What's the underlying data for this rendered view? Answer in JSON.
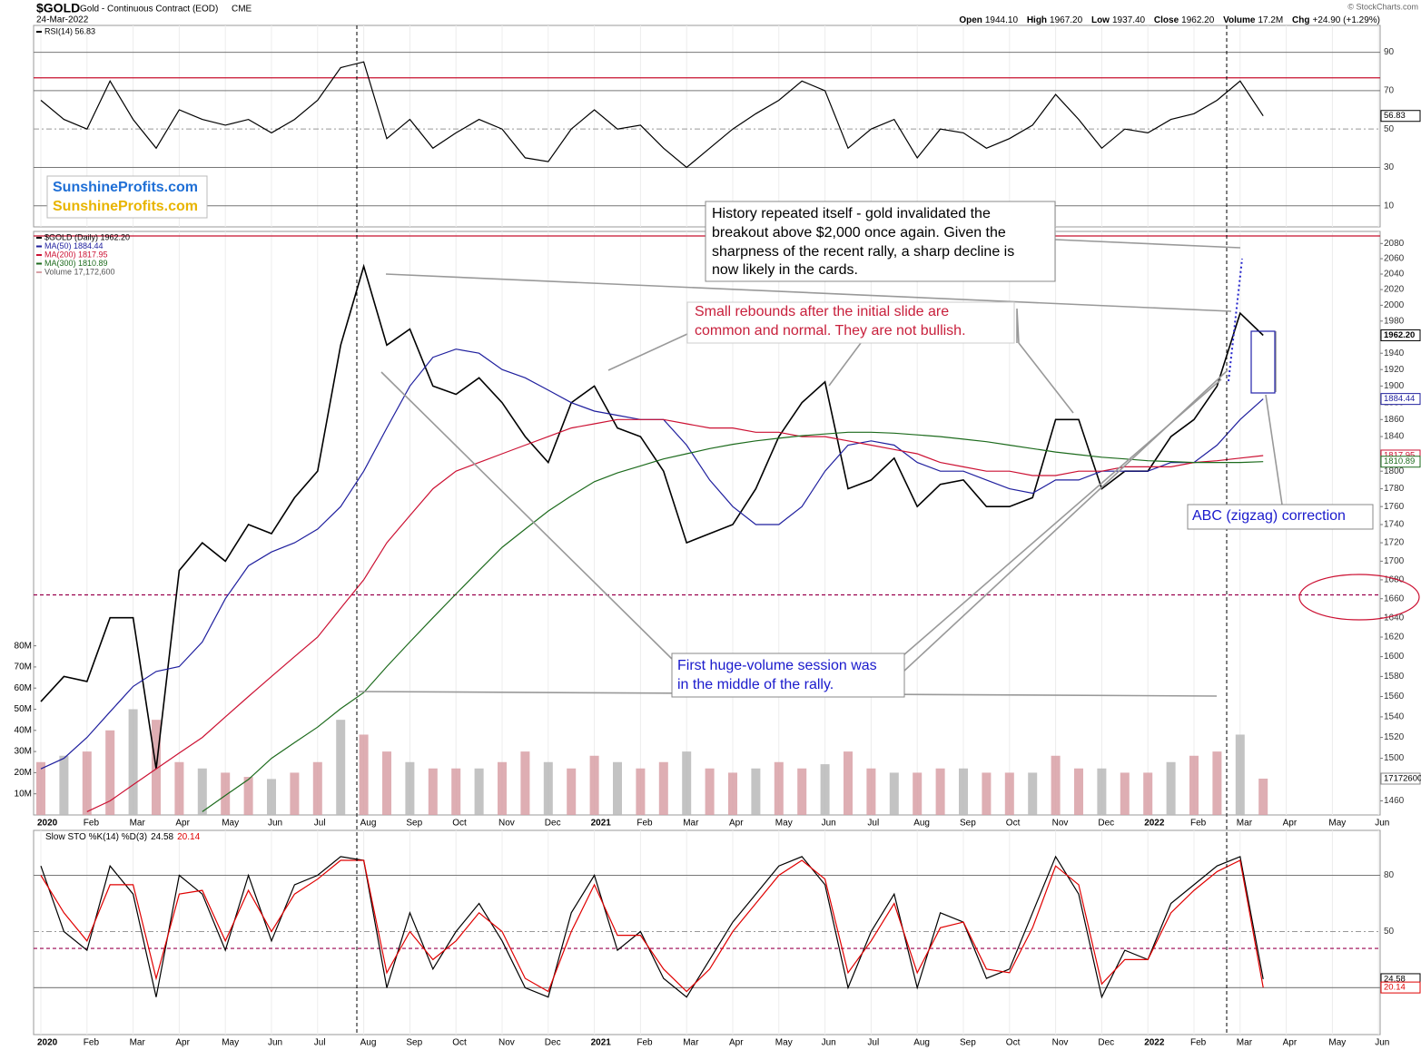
{
  "header": {
    "symbol": "$GOLD",
    "name": "Gold - Continuous Contract (EOD)",
    "exchange": "CME",
    "date": "24-Mar-2022",
    "quote": [
      [
        "Open",
        "1944.10"
      ],
      [
        "High",
        "1967.20"
      ],
      [
        "Low",
        "1937.40"
      ],
      [
        "Close",
        "1962.20"
      ],
      [
        "Volume",
        "17.2M"
      ],
      [
        "Chg",
        "+24.90 (+1.29%)"
      ]
    ],
    "copyright": "© StockCharts.com"
  },
  "logo": [
    "SunshineProfits.com",
    "SunshineProfits.com"
  ],
  "annotations": [
    {
      "lines": [
        "History repeated itself - gold invalidated the",
        "breakout above $2,000 once again. Given the",
        "sharpness of the recent rally, a sharp decline is",
        "now likely in the cards."
      ]
    },
    {
      "lines": [
        "Small rebounds after the initial slide are",
        "common and normal. They are not bullish."
      ]
    },
    {
      "lines": [
        "First huge-volume session was",
        "in the middle of the rally."
      ]
    },
    {
      "lines": [
        "ABC (zigzag) correction"
      ]
    }
  ],
  "chart_data": [
    {
      "type": "line",
      "ylim": [
        -1,
        104
      ],
      "yticks": [
        10,
        30,
        50,
        70,
        90
      ],
      "grid": true,
      "reference_lines": [
        {
          "value": 76.7,
          "color": "#c8102e"
        }
      ],
      "series": [
        {
          "name": "RSI(14) 56.83",
          "color": "#000000",
          "last_label": "56.83",
          "values": [
            65,
            55,
            50,
            75,
            55,
            40,
            60,
            55,
            52,
            55,
            48,
            55,
            65,
            82,
            85,
            45,
            55,
            40,
            48,
            55,
            50,
            35,
            33,
            50,
            60,
            50,
            52,
            40,
            30,
            40,
            50,
            58,
            65,
            75,
            70,
            40,
            50,
            55,
            35,
            50,
            48,
            40,
            45,
            52,
            68,
            55,
            40,
            50,
            48,
            55,
            58,
            65,
            75,
            56.83,
            null,
            null,
            null,
            null,
            null,
            null
          ]
        }
      ]
    },
    {
      "type": "line",
      "log_scale": true,
      "grid": false,
      "categories": [
        "2020",
        null,
        "Feb",
        null,
        "Mar",
        null,
        "Apr",
        null,
        "May",
        null,
        "Jun",
        null,
        "Jul",
        null,
        "Aug",
        null,
        "Sep",
        null,
        "Oct",
        null,
        "Nov",
        null,
        "Dec",
        null,
        "2021",
        null,
        "Feb",
        null,
        "Mar",
        null,
        "Apr",
        null,
        "May",
        null,
        "Jun",
        null,
        "Jul",
        null,
        "Aug",
        null,
        "Sep",
        null,
        "Oct",
        null,
        "Nov",
        null,
        "Dec",
        null,
        "2022",
        null,
        "Feb",
        null,
        "Mar",
        null,
        "Apr",
        null,
        "May",
        null,
        "Jun",
        null
      ],
      "ylim": [
        1447,
        2096
      ],
      "yticks": [
        1460,
        1480,
        1500,
        1520,
        1540,
        1560,
        1580,
        1600,
        1620,
        1640,
        1660,
        1680,
        1700,
        1720,
        1740,
        1760,
        1780,
        1800,
        1820,
        1840,
        1860,
        1880,
        1900,
        1920,
        1940,
        1960,
        1980,
        2000,
        2020,
        2040,
        2060,
        2080
      ],
      "y2lim": [
        0,
        276000000
      ],
      "y2ticks": [
        {
          "value": 10000000,
          "label": "10M"
        },
        {
          "value": 20000000,
          "label": "20M"
        },
        {
          "value": 30000000,
          "label": "30M"
        },
        {
          "value": 40000000,
          "label": "40M"
        },
        {
          "value": 50000000,
          "label": "50M"
        },
        {
          "value": 60000000,
          "label": "60M"
        },
        {
          "value": 70000000,
          "label": "70M"
        },
        {
          "value": 80000000,
          "label": "80M"
        }
      ],
      "reference_lines": [
        {
          "value": 2090,
          "color": "#c8102e"
        },
        {
          "value": 1664,
          "color": "#99004d",
          "dash": true
        }
      ],
      "series": [
        {
          "name": "$GOLD (Daily) 1962.20",
          "color": "#000000",
          "last_label": "1962.20",
          "values": [
            1555,
            1580,
            1575,
            1640,
            1640,
            1490,
            1690,
            1720,
            1700,
            1740,
            1730,
            1770,
            1800,
            1950,
            2050,
            1950,
            1970,
            1900,
            1890,
            1910,
            1880,
            1840,
            1810,
            1880,
            1900,
            1850,
            1840,
            1800,
            1720,
            1730,
            1740,
            1780,
            1840,
            1880,
            1905,
            1780,
            1790,
            1815,
            1760,
            1785,
            1790,
            1760,
            1760,
            1770,
            1860,
            1860,
            1780,
            1800,
            1800,
            1840,
            1860,
            1900,
            1990,
            1962.2,
            null,
            null,
            null,
            null,
            null,
            null
          ]
        },
        {
          "name": "MA(50) 1884.44",
          "color": "#1f1f9e",
          "last_label": "1884.44",
          "values": [
            1490,
            1500,
            1520,
            1545,
            1570,
            1585,
            1590,
            1615,
            1660,
            1695,
            1710,
            1720,
            1735,
            1760,
            1800,
            1850,
            1900,
            1935,
            1945,
            1940,
            1920,
            1910,
            1895,
            1880,
            1870,
            1865,
            1860,
            1860,
            1830,
            1790,
            1760,
            1740,
            1740,
            1760,
            1800,
            1830,
            1835,
            1830,
            1810,
            1800,
            1800,
            1790,
            1780,
            1775,
            1790,
            1790,
            1800,
            1800,
            1800,
            1810,
            1810,
            1830,
            1860,
            1884.44,
            null,
            null,
            null,
            null,
            null,
            null
          ]
        },
        {
          "name": "MA(200) 1817.95",
          "color": "#cc1133",
          "last_label": "1817.95",
          "values": [
            null,
            null,
            1450,
            1460,
            1475,
            1490,
            1505,
            1520,
            1540,
            1560,
            1580,
            1600,
            1620,
            1650,
            1680,
            1720,
            1750,
            1780,
            1800,
            1810,
            1820,
            1830,
            1840,
            1850,
            1855,
            1860,
            1860,
            1860,
            1855,
            1850,
            1850,
            1845,
            1845,
            1840,
            1840,
            1835,
            1830,
            1825,
            1820,
            1810,
            1805,
            1800,
            1800,
            1795,
            1795,
            1800,
            1800,
            1805,
            1805,
            1805,
            1810,
            1812,
            1815,
            1817.95,
            null,
            null,
            null,
            null,
            null,
            null
          ]
        },
        {
          "name": "MA(300) 1810.89",
          "color": "#1d6b1d",
          "last_label": "1810.89",
          "values": [
            null,
            null,
            null,
            null,
            null,
            null,
            null,
            1450,
            1465,
            1480,
            1500,
            1515,
            1530,
            1548,
            1564,
            1590,
            1615,
            1640,
            1665,
            1690,
            1715,
            1735,
            1755,
            1772,
            1788,
            1798,
            1806,
            1814,
            1820,
            1826,
            1831,
            1835,
            1838,
            1841,
            1843,
            1845,
            1845,
            1844,
            1842,
            1840,
            1837,
            1834,
            1830,
            1826,
            1822,
            1819,
            1816,
            1814,
            1812,
            1811,
            1810,
            1810,
            1810,
            1810.89,
            null,
            null,
            null,
            null,
            null,
            null
          ]
        },
        {
          "name": "Volume 17,172,600",
          "type": "bar",
          "axis": "y2",
          "color": "#d8a0a6",
          "values": [
            25000000,
            28000000,
            30000000,
            40000000,
            50000000,
            45000000,
            25000000,
            22000000,
            20000000,
            18000000,
            17000000,
            20000000,
            25000000,
            45000000,
            38000000,
            30000000,
            25000000,
            22000000,
            22000000,
            22000000,
            25000000,
            30000000,
            25000000,
            22000000,
            28000000,
            25000000,
            22000000,
            25000000,
            30000000,
            22000000,
            20000000,
            22000000,
            25000000,
            22000000,
            24000000,
            30000000,
            22000000,
            20000000,
            20000000,
            22000000,
            22000000,
            20000000,
            20000000,
            20000000,
            28000000,
            22000000,
            22000000,
            20000000,
            20000000,
            25000000,
            28000000,
            30000000,
            38000000,
            17172600,
            null,
            null,
            null,
            null,
            null,
            null
          ]
        }
      ]
    },
    {
      "type": "line",
      "title": "Slow STO %K(14) %D(3)",
      "grid": true,
      "categories": [
        "2020",
        null,
        "Feb",
        null,
        "Mar",
        null,
        "Apr",
        null,
        "May",
        null,
        "Jun",
        null,
        "Jul",
        null,
        "Aug",
        null,
        "Sep",
        null,
        "Oct",
        null,
        "Nov",
        null,
        "Dec",
        null,
        "2021",
        null,
        "Feb",
        null,
        "Mar",
        null,
        "Apr",
        null,
        "May",
        null,
        "Jun",
        null,
        "Jul",
        null,
        "Aug",
        null,
        "Sep",
        null,
        "Oct",
        null,
        "Nov",
        null,
        "Dec",
        null,
        "2022",
        null,
        "Feb",
        null,
        "Mar",
        null,
        "Apr",
        null,
        "May",
        null,
        "Jun",
        null
      ],
      "ylim": [
        -5,
        104
      ],
      "yticks": [
        50,
        80
      ],
      "reference_lines": [
        {
          "value": 41,
          "color": "#99004d",
          "dash": true
        },
        {
          "value": 20,
          "color": "#888888"
        }
      ],
      "series": [
        {
          "name": "24.58",
          "color": "#000000",
          "values": [
            85,
            50,
            40,
            85,
            70,
            15,
            80,
            70,
            40,
            80,
            45,
            75,
            80,
            90,
            88,
            20,
            60,
            30,
            50,
            65,
            45,
            20,
            15,
            60,
            80,
            40,
            50,
            25,
            15,
            35,
            55,
            70,
            85,
            90,
            75,
            20,
            50,
            70,
            20,
            60,
            55,
            25,
            30,
            60,
            90,
            70,
            15,
            40,
            35,
            65,
            75,
            85,
            90,
            24.58,
            null,
            null,
            null,
            null,
            null,
            null
          ]
        },
        {
          "name": "20.14",
          "color": "#e00000",
          "values": [
            80,
            60,
            45,
            75,
            75,
            25,
            70,
            72,
            45,
            72,
            50,
            70,
            78,
            88,
            88,
            28,
            50,
            35,
            45,
            60,
            50,
            25,
            18,
            50,
            75,
            48,
            48,
            30,
            18,
            30,
            50,
            65,
            80,
            88,
            78,
            28,
            45,
            65,
            28,
            52,
            55,
            30,
            28,
            52,
            85,
            75,
            22,
            35,
            35,
            60,
            72,
            82,
            88,
            20.14,
            null,
            null,
            null,
            null,
            null,
            null
          ]
        }
      ]
    }
  ]
}
